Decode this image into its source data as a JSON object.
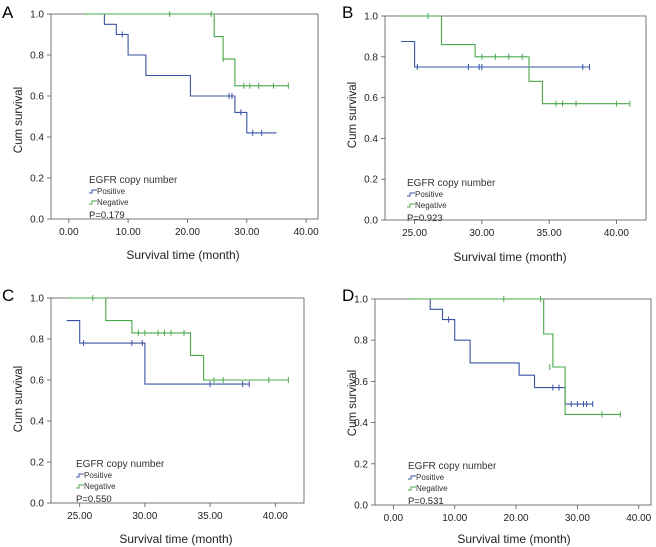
{
  "panels": [
    {
      "letter": "A",
      "p_value": "P=0.179",
      "legend_title": "EGFR copy number",
      "legend_positive": "Positive",
      "legend_negative": "Negative",
      "x_ticks": [
        "0.00",
        "10.00",
        "20.00",
        "30.00",
        "40.00"
      ],
      "y_ticks": [
        "0.0",
        "0.2",
        "0.4",
        "0.6",
        "0.8",
        "1.0"
      ],
      "xlabel": "Survival time (month)",
      "ylabel": "Cum survival"
    },
    {
      "letter": "B",
      "p_value": "P=0.923",
      "legend_title": "EGFR copy number",
      "legend_positive": "Positive",
      "legend_negative": "Negative",
      "x_ticks": [
        "25.00",
        "30.00",
        "35.00",
        "40.00"
      ],
      "y_ticks": [
        "0.0",
        "0.2",
        "0.4",
        "0.6",
        "0.8",
        "1.0"
      ],
      "xlabel": "Survival time (month)",
      "ylabel": "Cum survival"
    },
    {
      "letter": "C",
      "p_value": "P=0.550",
      "legend_title": "EGFR copy number",
      "legend_positive": "Positive",
      "legend_negative": "Negative",
      "x_ticks": [
        "25.00",
        "30.00",
        "35.00",
        "40.00"
      ],
      "y_ticks": [
        "0.0",
        "0.2",
        "0.4",
        "0.6",
        "0.8",
        "1.0"
      ],
      "xlabel": "Survival time (month)",
      "ylabel": "Cum survival"
    },
    {
      "letter": "D",
      "p_value": "P=0.531",
      "legend_title": "EGFR copy number",
      "legend_positive": "Positive",
      "legend_negative": "Negative",
      "x_ticks": [
        "0.00",
        "10.00",
        "20.00",
        "30.00",
        "40.00"
      ],
      "y_ticks": [
        "0.0",
        "0.2",
        "0.4",
        "0.6",
        "0.8",
        "1.0"
      ],
      "xlabel": "Survival time (month)",
      "ylabel": "Cum survival"
    }
  ],
  "colors": {
    "positive": "#3a53a4",
    "negative": "#4aa84a",
    "axis": "#555555"
  },
  "chart_data": [
    {
      "type": "line",
      "panel": "A",
      "title": "",
      "xlabel": "Survival time (month)",
      "ylabel": "Cum survival",
      "xlim": [
        -3,
        42
      ],
      "ylim": [
        0,
        1
      ],
      "x_ticks": [
        0,
        10,
        20,
        30,
        40
      ],
      "y_ticks": [
        0,
        0.2,
        0.4,
        0.6,
        0.8,
        1.0
      ],
      "series": [
        {
          "name": "Positive",
          "steps": [
            [
              2.5,
              1.0
            ],
            [
              6,
              0.95
            ],
            [
              8,
              0.9
            ],
            [
              10,
              0.8
            ],
            [
              13,
              0.7
            ],
            [
              20.5,
              0.6
            ],
            [
              28,
              0.52
            ],
            [
              30,
              0.42
            ],
            [
              35,
              0.42
            ]
          ],
          "censored": [
            [
              9,
              0.9
            ],
            [
              27,
              0.6
            ],
            [
              27.5,
              0.6
            ],
            [
              29,
              0.52
            ],
            [
              31,
              0.42
            ],
            [
              32.5,
              0.42
            ]
          ]
        },
        {
          "name": "Negative",
          "steps": [
            [
              2.5,
              1.0
            ],
            [
              24.5,
              0.89
            ],
            [
              26,
              0.78
            ],
            [
              28,
              0.65
            ],
            [
              37,
              0.65
            ]
          ],
          "censored": [
            [
              17,
              1.0
            ],
            [
              24,
              1.0
            ],
            [
              26,
              0.78
            ],
            [
              29.5,
              0.65
            ],
            [
              30.5,
              0.65
            ],
            [
              32,
              0.65
            ],
            [
              34.5,
              0.65
            ],
            [
              37,
              0.65
            ]
          ]
        }
      ],
      "annotations": [
        "P=0.179"
      ]
    },
    {
      "type": "line",
      "panel": "B",
      "title": "",
      "xlabel": "Survival time (month)",
      "ylabel": "Cum survival",
      "xlim": [
        22.8,
        42.2
      ],
      "ylim": [
        0,
        1
      ],
      "x_ticks": [
        25,
        30,
        35,
        40
      ],
      "y_ticks": [
        0,
        0.2,
        0.4,
        0.6,
        0.8,
        1.0
      ],
      "series": [
        {
          "name": "Positive",
          "steps": [
            [
              24,
              0.875
            ],
            [
              25,
              0.75
            ],
            [
              38,
              0.75
            ]
          ],
          "censored": [
            [
              25.2,
              0.75
            ],
            [
              29,
              0.75
            ],
            [
              29.8,
              0.75
            ],
            [
              30,
              0.75
            ],
            [
              37.5,
              0.75
            ],
            [
              38,
              0.75
            ]
          ]
        },
        {
          "name": "Negative",
          "steps": [
            [
              24,
              1.0
            ],
            [
              27,
              0.86
            ],
            [
              29.5,
              0.8
            ],
            [
              33.5,
              0.68
            ],
            [
              34.5,
              0.57
            ],
            [
              41,
              0.57
            ]
          ],
          "censored": [
            [
              26,
              1.0
            ],
            [
              30,
              0.8
            ],
            [
              31,
              0.8
            ],
            [
              32,
              0.8
            ],
            [
              33,
              0.8
            ],
            [
              35.5,
              0.57
            ],
            [
              36,
              0.57
            ],
            [
              37,
              0.57
            ],
            [
              40,
              0.57
            ],
            [
              41,
              0.57
            ]
          ]
        }
      ],
      "annotations": [
        "P=0.923"
      ]
    },
    {
      "type": "line",
      "panel": "C",
      "title": "",
      "xlabel": "Survival time (month)",
      "ylabel": "Cum survival",
      "xlim": [
        22.8,
        42.2
      ],
      "ylim": [
        0,
        1
      ],
      "x_ticks": [
        25,
        30,
        35,
        40
      ],
      "y_ticks": [
        0,
        0.2,
        0.4,
        0.6,
        0.8,
        1.0
      ],
      "series": [
        {
          "name": "Positive",
          "steps": [
            [
              24,
              0.89
            ],
            [
              25,
              0.78
            ],
            [
              30,
              0.58
            ],
            [
              38,
              0.58
            ]
          ],
          "censored": [
            [
              25.3,
              0.78
            ],
            [
              29,
              0.78
            ],
            [
              29.8,
              0.78
            ],
            [
              35,
              0.58
            ],
            [
              37.5,
              0.58
            ],
            [
              38,
              0.58
            ]
          ]
        },
        {
          "name": "Negative",
          "steps": [
            [
              24,
              1.0
            ],
            [
              27,
              0.89
            ],
            [
              29,
              0.83
            ],
            [
              33.5,
              0.72
            ],
            [
              34.5,
              0.6
            ],
            [
              41,
              0.6
            ]
          ],
          "censored": [
            [
              26,
              1.0
            ],
            [
              29.5,
              0.83
            ],
            [
              30,
              0.83
            ],
            [
              31,
              0.83
            ],
            [
              31.5,
              0.83
            ],
            [
              32,
              0.83
            ],
            [
              33,
              0.83
            ],
            [
              35.3,
              0.6
            ],
            [
              36,
              0.6
            ],
            [
              39.5,
              0.6
            ],
            [
              41,
              0.6
            ]
          ]
        }
      ],
      "annotations": [
        "P=0.550"
      ]
    },
    {
      "type": "line",
      "panel": "D",
      "title": "",
      "xlabel": "Survival time (month)",
      "ylabel": "Cum survival",
      "xlim": [
        -3,
        42
      ],
      "ylim": [
        0,
        1
      ],
      "x_ticks": [
        0,
        10,
        20,
        30,
        40
      ],
      "y_ticks": [
        0,
        0.2,
        0.4,
        0.6,
        0.8,
        1.0
      ],
      "series": [
        {
          "name": "Positive",
          "steps": [
            [
              2.5,
              1.0
            ],
            [
              6,
              0.95
            ],
            [
              8,
              0.9
            ],
            [
              10,
              0.8
            ],
            [
              12.5,
              0.69
            ],
            [
              20.5,
              0.63
            ],
            [
              23,
              0.57
            ],
            [
              28,
              0.49
            ],
            [
              32.5,
              0.49
            ]
          ],
          "censored": [
            [
              9,
              0.9
            ],
            [
              26,
              0.57
            ],
            [
              27,
              0.57
            ],
            [
              29,
              0.49
            ],
            [
              30,
              0.49
            ],
            [
              31,
              0.49
            ],
            [
              31.5,
              0.49
            ],
            [
              32.5,
              0.49
            ]
          ]
        },
        {
          "name": "Negative",
          "steps": [
            [
              2.5,
              1.0
            ],
            [
              24.5,
              0.83
            ],
            [
              26,
              0.67
            ],
            [
              28,
              0.44
            ],
            [
              37,
              0.44
            ]
          ],
          "censored": [
            [
              18,
              1.0
            ],
            [
              24,
              1.0
            ],
            [
              25.5,
              0.67
            ],
            [
              34,
              0.44
            ],
            [
              37,
              0.44
            ]
          ]
        }
      ],
      "annotations": [
        "P=0.531"
      ]
    }
  ]
}
